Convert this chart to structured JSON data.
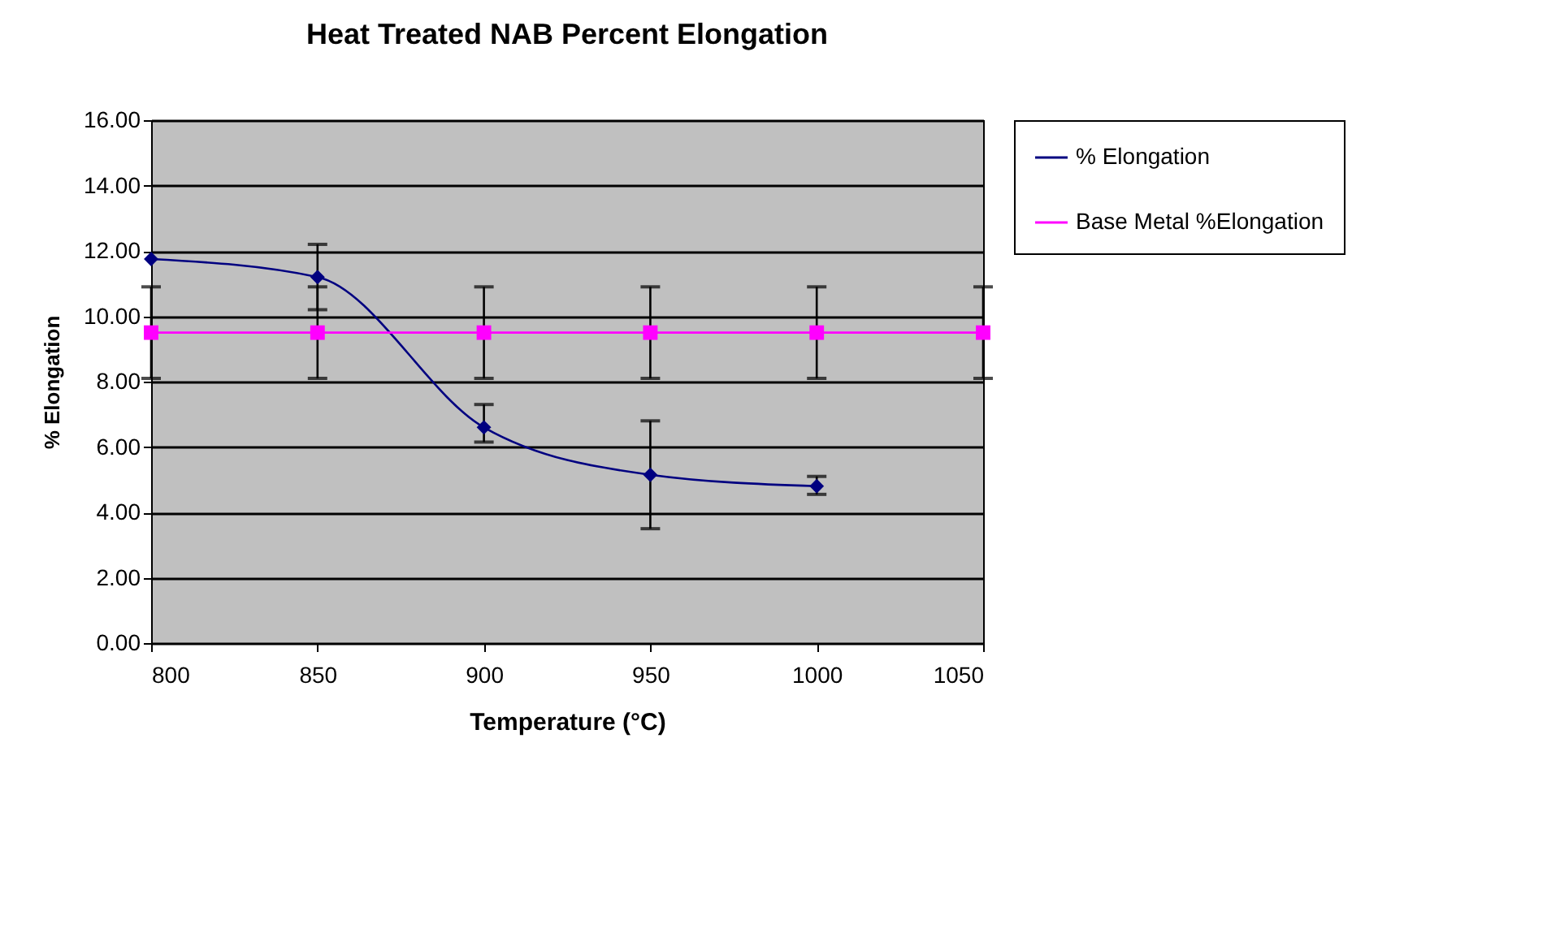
{
  "chart_data": {
    "type": "line",
    "title": "Heat Treated NAB Percent Elongation",
    "xlabel": "Temperature (°C)",
    "ylabel": "% Elongation",
    "x": [
      800,
      850,
      900,
      950,
      1000,
      1050
    ],
    "series": [
      {
        "name": "% Elongation",
        "color": "#000080",
        "marker": "diamond",
        "values": [
          11.75,
          11.2,
          6.6,
          5.15,
          4.8,
          null
        ],
        "errors": [
          null,
          [
            10.2,
            12.2
          ],
          [
            6.15,
            7.3
          ],
          [
            3.5,
            6.8
          ],
          [
            4.55,
            5.1
          ],
          null
        ]
      },
      {
        "name": "Base Metal %Elongation",
        "color": "#ff00ff",
        "marker": "square",
        "values": [
          9.5,
          9.5,
          9.5,
          9.5,
          9.5,
          9.5
        ],
        "errors": [
          1.4,
          1.4,
          1.4,
          1.4,
          1.4,
          1.4
        ]
      }
    ],
    "xlim": [
      800,
      1050
    ],
    "xticks": [
      800,
      850,
      900,
      950,
      1000,
      1050
    ],
    "ylim": [
      0,
      16
    ],
    "yticks": [
      {
        "value": 0,
        "label": "0.00"
      },
      {
        "value": 2,
        "label": "2.00"
      },
      {
        "value": 4,
        "label": "4.00"
      },
      {
        "value": 6,
        "label": "6.00"
      },
      {
        "value": 8,
        "label": "8.00"
      },
      {
        "value": 10,
        "label": "10.00"
      },
      {
        "value": 12,
        "label": "12.00"
      },
      {
        "value": 14,
        "label": "14.00"
      },
      {
        "value": 16,
        "label": "16.00"
      }
    ],
    "grid": "y",
    "legend": "right",
    "line_style": "solid"
  }
}
